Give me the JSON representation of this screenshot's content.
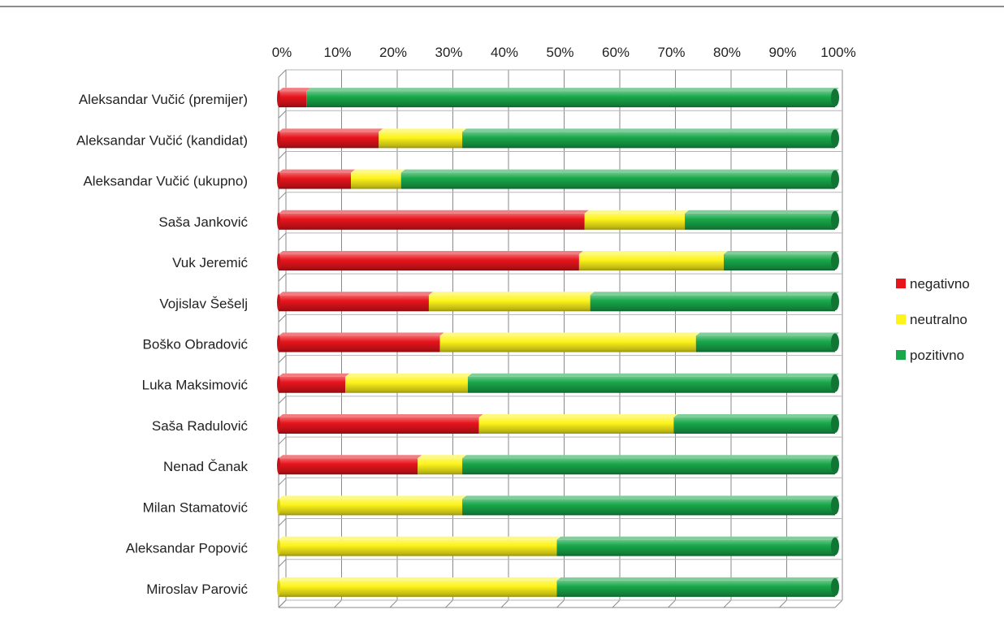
{
  "chart_data": {
    "type": "bar",
    "orientation": "horizontal",
    "stacked": true,
    "percent_stacked": true,
    "three_d": true,
    "grid": true,
    "legend_position": "right",
    "x_axis_position": "top",
    "xlim": [
      0,
      100
    ],
    "x_ticks": [
      "0%",
      "10%",
      "20%",
      "30%",
      "40%",
      "50%",
      "60%",
      "70%",
      "80%",
      "90%",
      "100%"
    ],
    "categories": [
      "Aleksandar Vučić (premijer)",
      "Aleksandar Vučić (kandidat)",
      "Aleksandar Vučić (ukupno)",
      "Saša Janković",
      "Vuk Jeremić",
      "Vojislav Šešelj",
      "Boško Obradović",
      "Luka Maksimović",
      "Saša Radulović",
      "Nenad Čanak",
      "Milan Stamatović",
      "Aleksandar Popović",
      "Miroslav Parović"
    ],
    "series": [
      {
        "name": "negativno",
        "color": "#e8141c",
        "values": [
          5,
          18,
          13,
          55,
          54,
          27,
          29,
          12,
          36,
          25,
          0,
          0,
          0
        ]
      },
      {
        "name": "neutralno",
        "color": "#fdf41a",
        "values": [
          0,
          15,
          9,
          18,
          26,
          29,
          46,
          22,
          35,
          8,
          33,
          50,
          50
        ]
      },
      {
        "name": "pozitivno",
        "color": "#18a84a",
        "values": [
          95,
          67,
          78,
          27,
          20,
          44,
          25,
          66,
          29,
          67,
          67,
          50,
          50
        ]
      }
    ]
  }
}
